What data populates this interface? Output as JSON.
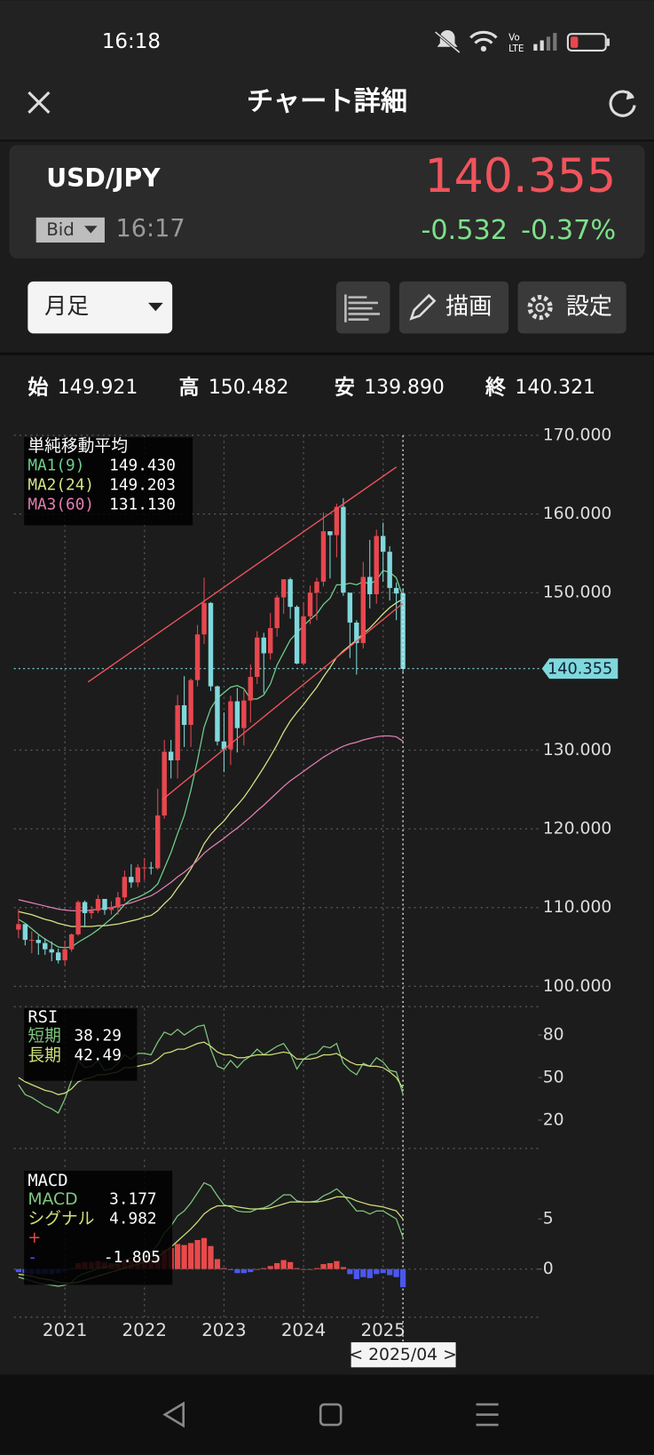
{
  "status_bar": {
    "time": "16:18"
  },
  "header": {
    "title": "チャート詳細"
  },
  "quote": {
    "symbol": "USD/JPY",
    "side": "Bid",
    "time": "16:17",
    "price": "140.355",
    "change": "-0.532",
    "change_pct": "-0.37%"
  },
  "toolbar": {
    "period": "月足",
    "draw": "描画",
    "settings": "設定"
  },
  "ohlc": [
    {
      "label": "始",
      "value": "149.921"
    },
    {
      "label": "高",
      "value": "150.482"
    },
    {
      "label": "安",
      "value": "139.890"
    },
    {
      "label": "終",
      "value": "140.321"
    }
  ],
  "chart_data": [
    {
      "type": "candlestick",
      "title": "単純移動平均",
      "up_color": "#e8474f",
      "down_color": "#7fd8dc",
      "open": [
        107.2,
        107.9,
        105.9,
        105.9,
        105.5,
        104.7,
        104.3,
        103.3,
        104.7,
        106.6,
        110.7,
        109.3,
        109.6,
        111.1,
        109.7,
        110.0,
        111.3,
        113.9,
        113.2,
        115.1,
        115.1,
        115.0,
        121.7,
        129.8,
        128.7,
        135.7,
        133.2,
        138.9,
        144.7,
        148.7,
        138.1,
        131.1,
        130.1,
        136.2,
        132.8,
        136.3,
        139.3,
        144.3,
        142.3,
        145.5,
        149.4,
        151.7,
        148.2,
        141.0,
        147.0,
        150.0,
        151.4,
        157.8,
        157.3,
        160.9,
        150.0,
        146.2,
        143.6,
        152.0,
        149.8,
        157.2,
        155.2,
        150.6,
        149.921
      ],
      "high": [
        109.8,
        107.8,
        107.0,
        106.5,
        106.1,
        105.7,
        104.8,
        105.8,
        106.7,
        110.9,
        110.9,
        110.2,
        111.6,
        111.0,
        110.8,
        112.0,
        114.7,
        115.5,
        115.5,
        116.3,
        115.8,
        125.1,
        131.3,
        131.3,
        137.0,
        139.4,
        139.1,
        145.9,
        151.9,
        148.8,
        138.2,
        134.8,
        136.9,
        137.9,
        137.8,
        140.9,
        145.1,
        144.9,
        147.4,
        149.7,
        151.7,
        151.9,
        148.4,
        148.8,
        150.9,
        151.9,
        160.2,
        157.7,
        161.3,
        162.0,
        149.4,
        146.5,
        153.9,
        156.7,
        158.0,
        158.9,
        155.9,
        151.3,
        150.482
      ],
      "low": [
        106.1,
        105.2,
        104.2,
        104.0,
        104.0,
        103.2,
        102.9,
        102.6,
        104.4,
        106.4,
        107.5,
        108.6,
        109.3,
        109.1,
        109.1,
        109.1,
        110.8,
        112.5,
        112.6,
        113.5,
        114.2,
        114.8,
        121.3,
        126.4,
        126.4,
        130.4,
        130.4,
        138.1,
        143.5,
        137.5,
        130.6,
        127.2,
        128.1,
        129.7,
        130.6,
        133.5,
        138.4,
        137.2,
        141.5,
        144.4,
        147.3,
        146.7,
        140.9,
        140.8,
        146.0,
        146.5,
        150.8,
        151.8,
        154.5,
        149.6,
        141.7,
        139.6,
        142.9,
        148.0,
        148.6,
        151.4,
        149.0,
        146.5,
        139.89
      ],
      "close": [
        107.9,
        105.9,
        105.9,
        105.5,
        104.7,
        104.3,
        103.3,
        104.7,
        106.6,
        110.7,
        109.3,
        109.6,
        111.1,
        109.7,
        110.0,
        111.3,
        113.9,
        113.2,
        115.1,
        115.1,
        115.0,
        121.7,
        129.8,
        128.7,
        135.7,
        133.2,
        138.9,
        144.7,
        148.7,
        138.1,
        131.1,
        130.1,
        136.2,
        132.8,
        136.3,
        139.3,
        144.3,
        142.3,
        145.5,
        149.4,
        151.7,
        148.2,
        141.0,
        147.0,
        150.0,
        151.4,
        157.8,
        157.3,
        160.9,
        150.0,
        146.2,
        143.6,
        152.0,
        149.8,
        157.2,
        155.2,
        150.6,
        149.9,
        140.321
      ],
      "series": [
        {
          "name": "MA1(9)",
          "color": "#6fd08f",
          "value_label": "149.430",
          "values": [
            108.5,
            108.0,
            107.3,
            106.6,
            106.0,
            105.5,
            105.0,
            104.9,
            105.0,
            105.6,
            106.1,
            106.6,
            107.2,
            107.9,
            108.6,
            109.4,
            110.4,
            111.0,
            111.3,
            111.7,
            112.2,
            113.0,
            115.0,
            117.0,
            119.4,
            121.7,
            124.9,
            128.7,
            132.9,
            135.3,
            136.6,
            137.3,
            138.0,
            138.2,
            137.8,
            136.5,
            136.5,
            137.0,
            138.4,
            140.8,
            142.4,
            144.0,
            144.9,
            145.8,
            146.6,
            147.3,
            148.5,
            149.3,
            151.0,
            151.0,
            151.2,
            151.0,
            151.4,
            151.1,
            151.6,
            152.8,
            152.6,
            151.9,
            149.43
          ]
        },
        {
          "name": "MA2(24)",
          "color": "#d6e58a",
          "value_label": "149.203",
          "values": [
            109.5,
            109.3,
            109.1,
            108.8,
            108.5,
            108.3,
            108.0,
            107.8,
            107.6,
            107.6,
            107.6,
            107.6,
            107.7,
            107.7,
            107.8,
            107.9,
            108.1,
            108.3,
            108.5,
            108.8,
            109.0,
            109.6,
            110.5,
            111.3,
            112.5,
            113.6,
            114.9,
            116.4,
            118.1,
            119.3,
            120.2,
            121.0,
            122.1,
            123.0,
            124.0,
            125.2,
            126.5,
            127.8,
            129.2,
            130.7,
            132.3,
            133.7,
            134.8,
            135.8,
            136.9,
            138.0,
            139.3,
            140.5,
            141.8,
            142.6,
            143.3,
            144.0,
            144.8,
            145.5,
            146.4,
            147.3,
            148.1,
            148.7,
            149.203
          ]
        },
        {
          "name": "MA3(60)",
          "color": "#e27fb3",
          "value_label": "131.130",
          "values": [
            111.0,
            110.8,
            110.6,
            110.4,
            110.2,
            110.0,
            109.8,
            109.7,
            109.6,
            109.6,
            109.6,
            109.7,
            109.8,
            109.9,
            110.0,
            110.2,
            110.4,
            110.6,
            110.9,
            111.2,
            111.5,
            112.0,
            112.6,
            113.2,
            113.9,
            114.5,
            115.2,
            116.0,
            116.9,
            117.6,
            118.2,
            118.8,
            119.5,
            120.1,
            120.8,
            121.5,
            122.3,
            123.0,
            123.8,
            124.6,
            125.4,
            126.1,
            126.7,
            127.3,
            127.9,
            128.5,
            129.1,
            129.6,
            130.1,
            130.5,
            130.8,
            131.0,
            131.3,
            131.5,
            131.7,
            131.8,
            131.8,
            131.7,
            131.13
          ]
        }
      ],
      "price": 140.355,
      "ylim": [
        98.6,
        170.8
      ],
      "yticks": [
        {
          "value": 170,
          "label": "170.000"
        },
        {
          "value": 160,
          "label": "160.000"
        },
        {
          "value": 150,
          "label": "150.000"
        },
        {
          "value": 130,
          "label": "130.000"
        },
        {
          "value": 120,
          "label": "120.000"
        },
        {
          "value": 110,
          "label": "110.000"
        },
        {
          "value": 100,
          "label": "100.000"
        }
      ],
      "xticks": [
        {
          "value": 7,
          "label": "2021"
        },
        {
          "value": 19,
          "label": "2022"
        },
        {
          "value": 31,
          "label": "2023"
        },
        {
          "value": 43,
          "label": "2024"
        },
        {
          "value": 55,
          "label": "2025"
        }
      ],
      "cursor_label": "< 2025/04 >",
      "grid": true
    },
    {
      "type": "line",
      "title": "RSI",
      "ylim": [
        0,
        100
      ],
      "yticks": [
        80,
        50,
        20
      ],
      "series": [
        {
          "name": "短期",
          "color": "#7ec87e",
          "values": [
            45,
            38,
            36,
            33,
            30,
            28,
            25,
            35,
            48,
            62,
            57,
            58,
            62,
            55,
            56,
            60,
            66,
            63,
            67,
            67,
            66,
            75,
            82,
            80,
            84,
            80,
            83,
            86,
            87,
            70,
            58,
            56,
            62,
            57,
            62,
            65,
            70,
            66,
            69,
            72,
            74,
            67,
            56,
            63,
            66,
            67,
            72,
            71,
            74,
            60,
            55,
            52,
            60,
            58,
            64,
            61,
            55,
            54,
            38.29
          ]
        },
        {
          "name": "長期",
          "color": "#cfe07a",
          "values": [
            50,
            47,
            45,
            43,
            41,
            40,
            38,
            39,
            42,
            47,
            49,
            50,
            52,
            52,
            53,
            54,
            57,
            57,
            58,
            59,
            60,
            63,
            67,
            68,
            70,
            70,
            72,
            74,
            75,
            72,
            68,
            66,
            66,
            64,
            64,
            65,
            66,
            66,
            66,
            67,
            68,
            67,
            63,
            63,
            63,
            64,
            66,
            66,
            67,
            64,
            61,
            59,
            59,
            58,
            58,
            57,
            54,
            50,
            42.49
          ]
        }
      ]
    },
    {
      "type": "macd",
      "title": "MACD",
      "ylim": [
        -4.8,
        11.1
      ],
      "yticks": [
        5,
        0
      ],
      "series": [
        {
          "name": "MACD",
          "color": "#7ec87e",
          "values": [
            -0.8,
            -1.0,
            -1.2,
            -1.4,
            -1.5,
            -1.6,
            -1.7,
            -1.6,
            -1.3,
            -0.7,
            -0.4,
            -0.2,
            0.1,
            0.2,
            0.3,
            0.5,
            0.9,
            1.1,
            1.4,
            1.6,
            1.7,
            2.4,
            3.6,
            4.3,
            5.3,
            5.8,
            6.6,
            7.6,
            8.6,
            8.3,
            7.3,
            6.4,
            6.2,
            5.8,
            5.7,
            5.7,
            6.0,
            6.1,
            6.4,
            6.9,
            7.4,
            7.4,
            6.8,
            6.7,
            6.7,
            6.8,
            7.3,
            7.6,
            8.0,
            7.4,
            6.6,
            5.8,
            5.8,
            5.5,
            5.8,
            5.8,
            5.4,
            5.0,
            3.177
          ]
        },
        {
          "name": "シグナル",
          "color": "#cfe07a",
          "values": [
            -0.5,
            -0.6,
            -0.7,
            -0.9,
            -1.0,
            -1.1,
            -1.3,
            -1.4,
            -1.4,
            -1.3,
            -1.1,
            -0.9,
            -0.7,
            -0.5,
            -0.3,
            -0.1,
            0.1,
            0.3,
            0.5,
            0.7,
            0.9,
            1.2,
            1.7,
            2.2,
            2.8,
            3.4,
            4.0,
            4.7,
            5.5,
            6.0,
            6.3,
            6.3,
            6.3,
            6.2,
            6.1,
            6.0,
            6.0,
            6.0,
            6.1,
            6.3,
            6.5,
            6.7,
            6.7,
            6.7,
            6.7,
            6.7,
            6.8,
            7.0,
            7.2,
            7.2,
            7.1,
            6.8,
            6.6,
            6.4,
            6.3,
            6.2,
            6.0,
            5.8,
            4.982
          ]
        }
      ],
      "histogram": {
        "pos_name": "+",
        "neg_name": "-",
        "pos_color": "#e84a4a",
        "neg_color": "#4b57ee",
        "values": [
          -0.3,
          -0.4,
          -0.5,
          -0.5,
          -0.5,
          -0.5,
          -0.4,
          -0.2,
          0.1,
          0.6,
          0.7,
          0.7,
          0.8,
          0.7,
          0.6,
          0.6,
          0.8,
          0.8,
          0.9,
          0.9,
          0.8,
          1.2,
          1.9,
          2.1,
          2.5,
          2.4,
          2.6,
          2.9,
          3.1,
          2.3,
          1.0,
          0.1,
          -0.1,
          -0.4,
          -0.4,
          -0.3,
          0,
          0.1,
          0.3,
          0.6,
          0.9,
          0.7,
          0.1,
          0,
          0,
          0.1,
          0.5,
          0.6,
          0.8,
          0.2,
          -0.5,
          -1.0,
          -0.8,
          -0.9,
          -0.5,
          -0.4,
          -0.6,
          -0.8,
          -1.805
        ]
      }
    }
  ]
}
